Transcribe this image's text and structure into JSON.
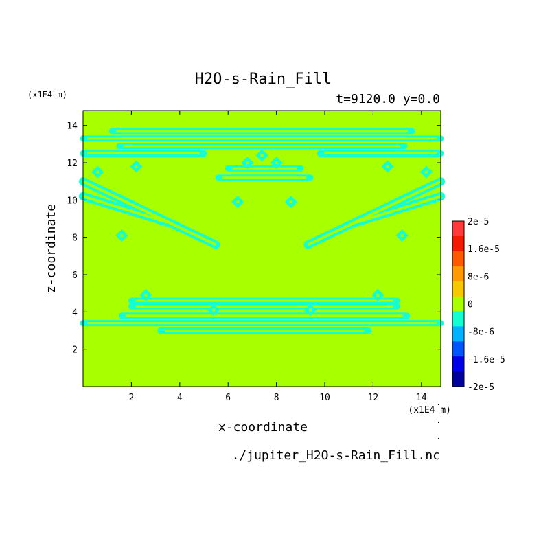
{
  "chart_data": {
    "type": "heatmap",
    "title": "H2O-s-Rain_Fill",
    "subtitle": "t=9120.0 y=0.0",
    "xlabel": "x-coordinate",
    "ylabel": "z-coordinate",
    "x_unit": "(x1E4 m)",
    "y_unit": "(x1E4 m)",
    "source": "./jupiter_H2O-s-Rain_Fill.nc",
    "xlim": [
      0.0,
      14.8
    ],
    "ylim": [
      0.0,
      14.8
    ],
    "x_ticks": [
      "2",
      "4",
      "6",
      "8",
      "10",
      "12",
      "14"
    ],
    "y_ticks": [
      "2",
      "4",
      "6",
      "8",
      "10",
      "12",
      "14"
    ],
    "background_level": 0,
    "pattern_level": "-4e-6",
    "bands": [
      {
        "z": 13.7,
        "x0": 1.2,
        "x1": 13.6
      },
      {
        "z": 13.3,
        "x0": 0.0,
        "x1": 14.8
      },
      {
        "z": 12.9,
        "x0": 1.5,
        "x1": 13.3
      },
      {
        "z": 12.5,
        "x0": 0.0,
        "x1": 5.0
      },
      {
        "z": 12.5,
        "x0": 9.8,
        "x1": 14.8
      },
      {
        "z": 11.7,
        "x0": 6.0,
        "x1": 9.0
      },
      {
        "z": 11.2,
        "x0": 5.6,
        "x1": 9.4
      },
      {
        "z": 4.6,
        "x0": 2.0,
        "x1": 13.0
      },
      {
        "z": 4.3,
        "x0": 2.0,
        "x1": 13.0
      },
      {
        "z": 3.8,
        "x0": 1.6,
        "x1": 13.4
      },
      {
        "z": 3.4,
        "x0": 0.0,
        "x1": 14.8
      },
      {
        "z": 3.0,
        "x0": 3.2,
        "x1": 11.8
      }
    ],
    "diagonals": [
      {
        "x0": 0.0,
        "z0": 11.0,
        "x1": 5.5,
        "z1": 7.6
      },
      {
        "x0": 0.0,
        "z0": 10.2,
        "x1": 3.5,
        "z1": 8.8
      },
      {
        "x0": 14.8,
        "z0": 11.0,
        "x1": 9.3,
        "z1": 7.6
      },
      {
        "x0": 14.8,
        "z0": 10.2,
        "x1": 11.3,
        "z1": 8.8
      }
    ],
    "diamonds": [
      {
        "x": 0.6,
        "z": 11.5
      },
      {
        "x": 14.2,
        "z": 11.5
      },
      {
        "x": 2.2,
        "z": 11.8
      },
      {
        "x": 12.6,
        "z": 11.8
      },
      {
        "x": 6.4,
        "z": 9.9
      },
      {
        "x": 8.6,
        "z": 9.9
      },
      {
        "x": 1.6,
        "z": 8.1
      },
      {
        "x": 13.2,
        "z": 8.1
      },
      {
        "x": 2.6,
        "z": 4.9
      },
      {
        "x": 12.2,
        "z": 4.9
      },
      {
        "x": 5.4,
        "z": 4.1
      },
      {
        "x": 9.4,
        "z": 4.1
      },
      {
        "x": 7.4,
        "z": 12.4
      },
      {
        "x": 6.8,
        "z": 12.0
      },
      {
        "x": 8.0,
        "z": 12.0
      }
    ],
    "colorbar": {
      "labels": [
        "2e-5",
        "1.6e-5",
        "8e-6",
        "0",
        "-8e-6",
        "-1.6e-5",
        "-2e-5"
      ],
      "colors": [
        "#ff3a3a",
        "#f21a00",
        "#ff5a00",
        "#ff9a00",
        "#f6c800",
        "#a8ff00",
        "#14ffcf",
        "#00b2ff",
        "#0055ff",
        "#0000e6",
        "#00009c"
      ]
    }
  }
}
